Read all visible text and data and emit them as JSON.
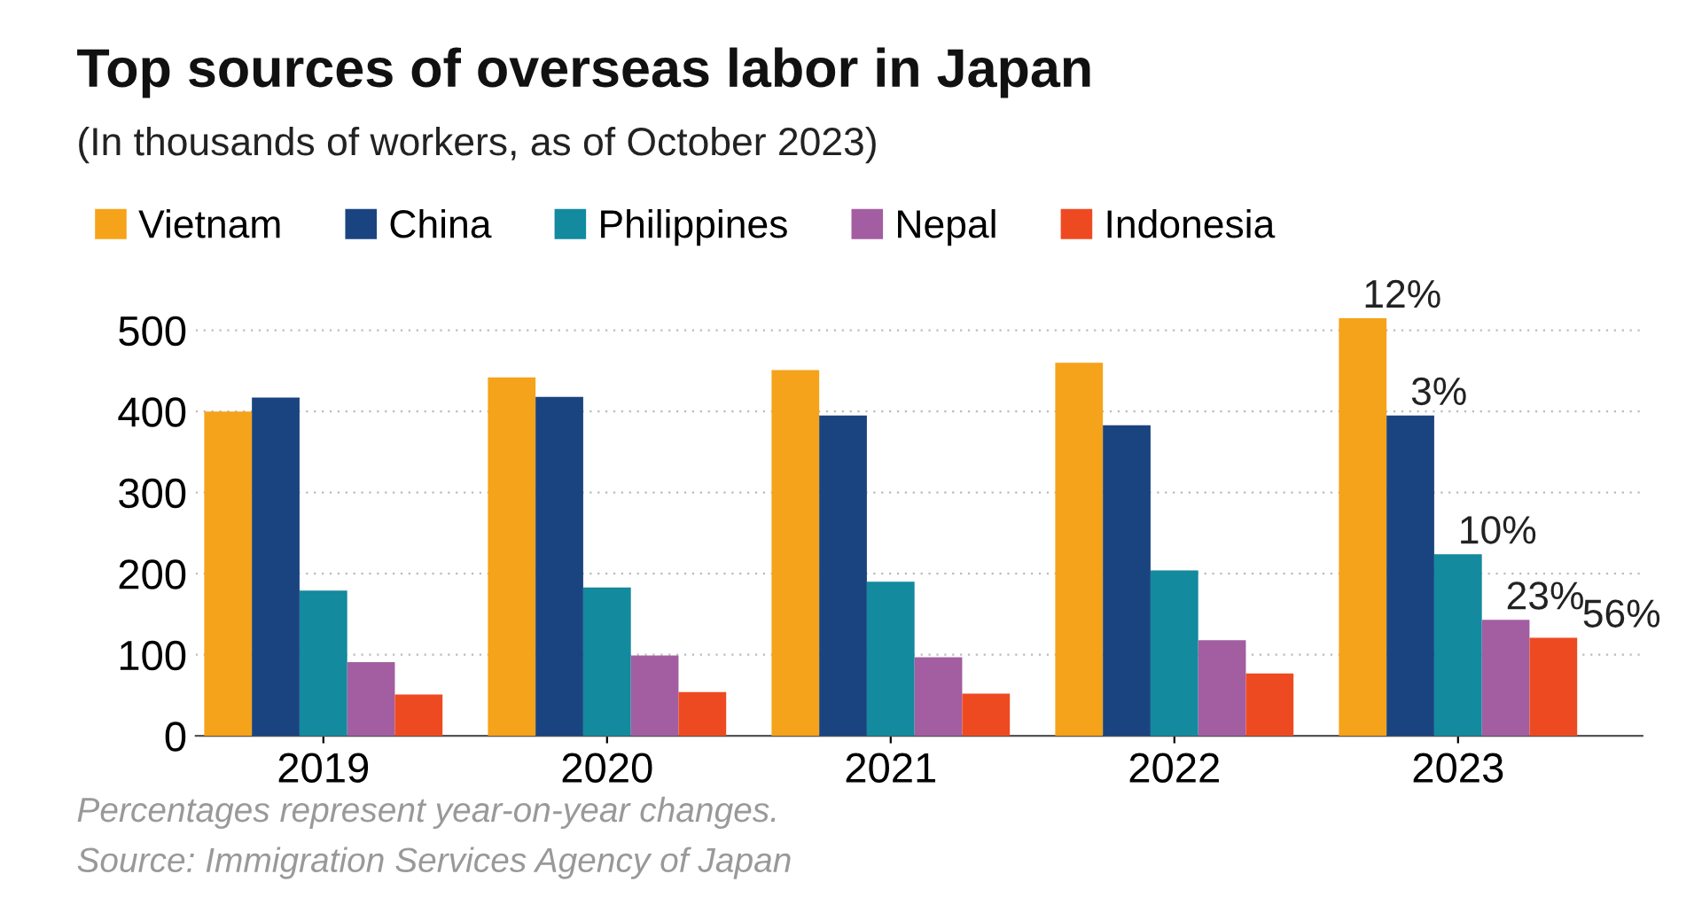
{
  "chart_data": {
    "type": "bar",
    "title": "Top sources of overseas labor in Japan",
    "subtitle": "(In thousands of workers, as of October 2023)",
    "categories": [
      "2019",
      "2020",
      "2021",
      "2022",
      "2023"
    ],
    "series": [
      {
        "name": "Vietnam",
        "color": "#f5a31a",
        "values": [
          400,
          442,
          451,
          460,
          515
        ]
      },
      {
        "name": "China",
        "color": "#1a4480",
        "values": [
          417,
          418,
          395,
          383,
          395
        ]
      },
      {
        "name": "Philippines",
        "color": "#138a9e",
        "values": [
          179,
          183,
          190,
          204,
          224
        ]
      },
      {
        "name": "Nepal",
        "color": "#a25ea0",
        "values": [
          91,
          99,
          97,
          118,
          143
        ]
      },
      {
        "name": "Indonesia",
        "color": "#ee4a22",
        "values": [
          51,
          54,
          52,
          77,
          121
        ]
      }
    ],
    "ylim": [
      0,
      520
    ],
    "yticks": [
      0,
      100,
      200,
      300,
      400,
      500
    ],
    "grid": "y",
    "legend": "top",
    "annotations": [
      "12%",
      "3%",
      "10%",
      "23%",
      "56%",
      "Percentages represent year-on-year changes.",
      "Source: Immigration Services Agency of Japan"
    ]
  }
}
